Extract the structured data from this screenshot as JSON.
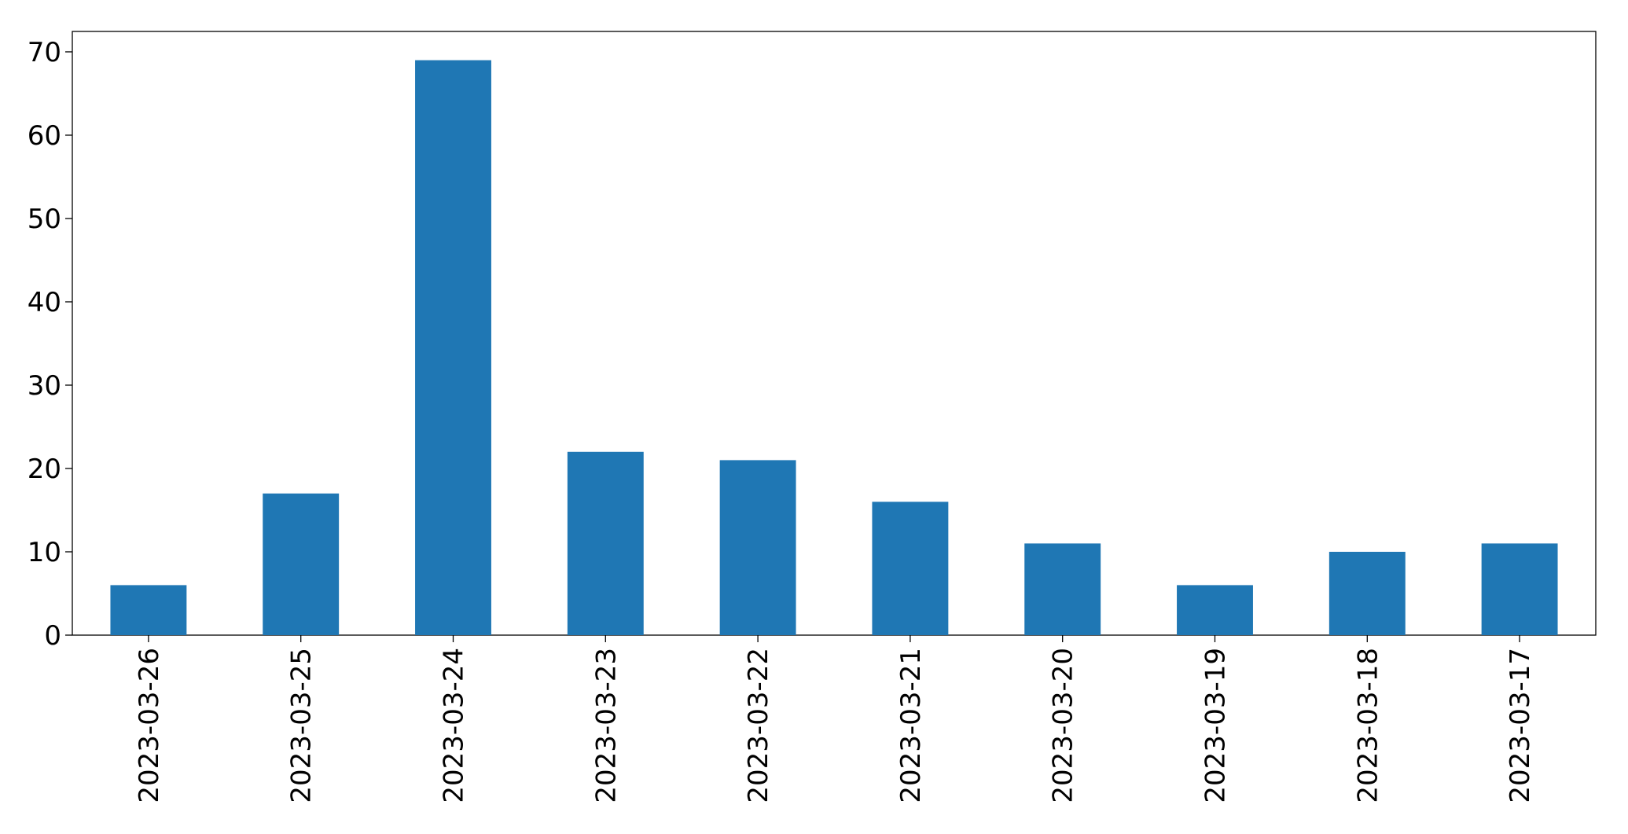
{
  "chart_data": {
    "type": "bar",
    "categories": [
      "2023-03-26",
      "2023-03-25",
      "2023-03-24",
      "2023-03-23",
      "2023-03-22",
      "2023-03-21",
      "2023-03-20",
      "2023-03-19",
      "2023-03-18",
      "2023-03-17"
    ],
    "values": [
      6,
      17,
      69,
      22,
      21,
      16,
      11,
      6,
      10,
      11
    ],
    "color": "#1f77b4",
    "ylim": [
      0,
      72.45
    ],
    "yticks": [
      0,
      10,
      20,
      30,
      40,
      50,
      60,
      70
    ],
    "grid": false
  }
}
